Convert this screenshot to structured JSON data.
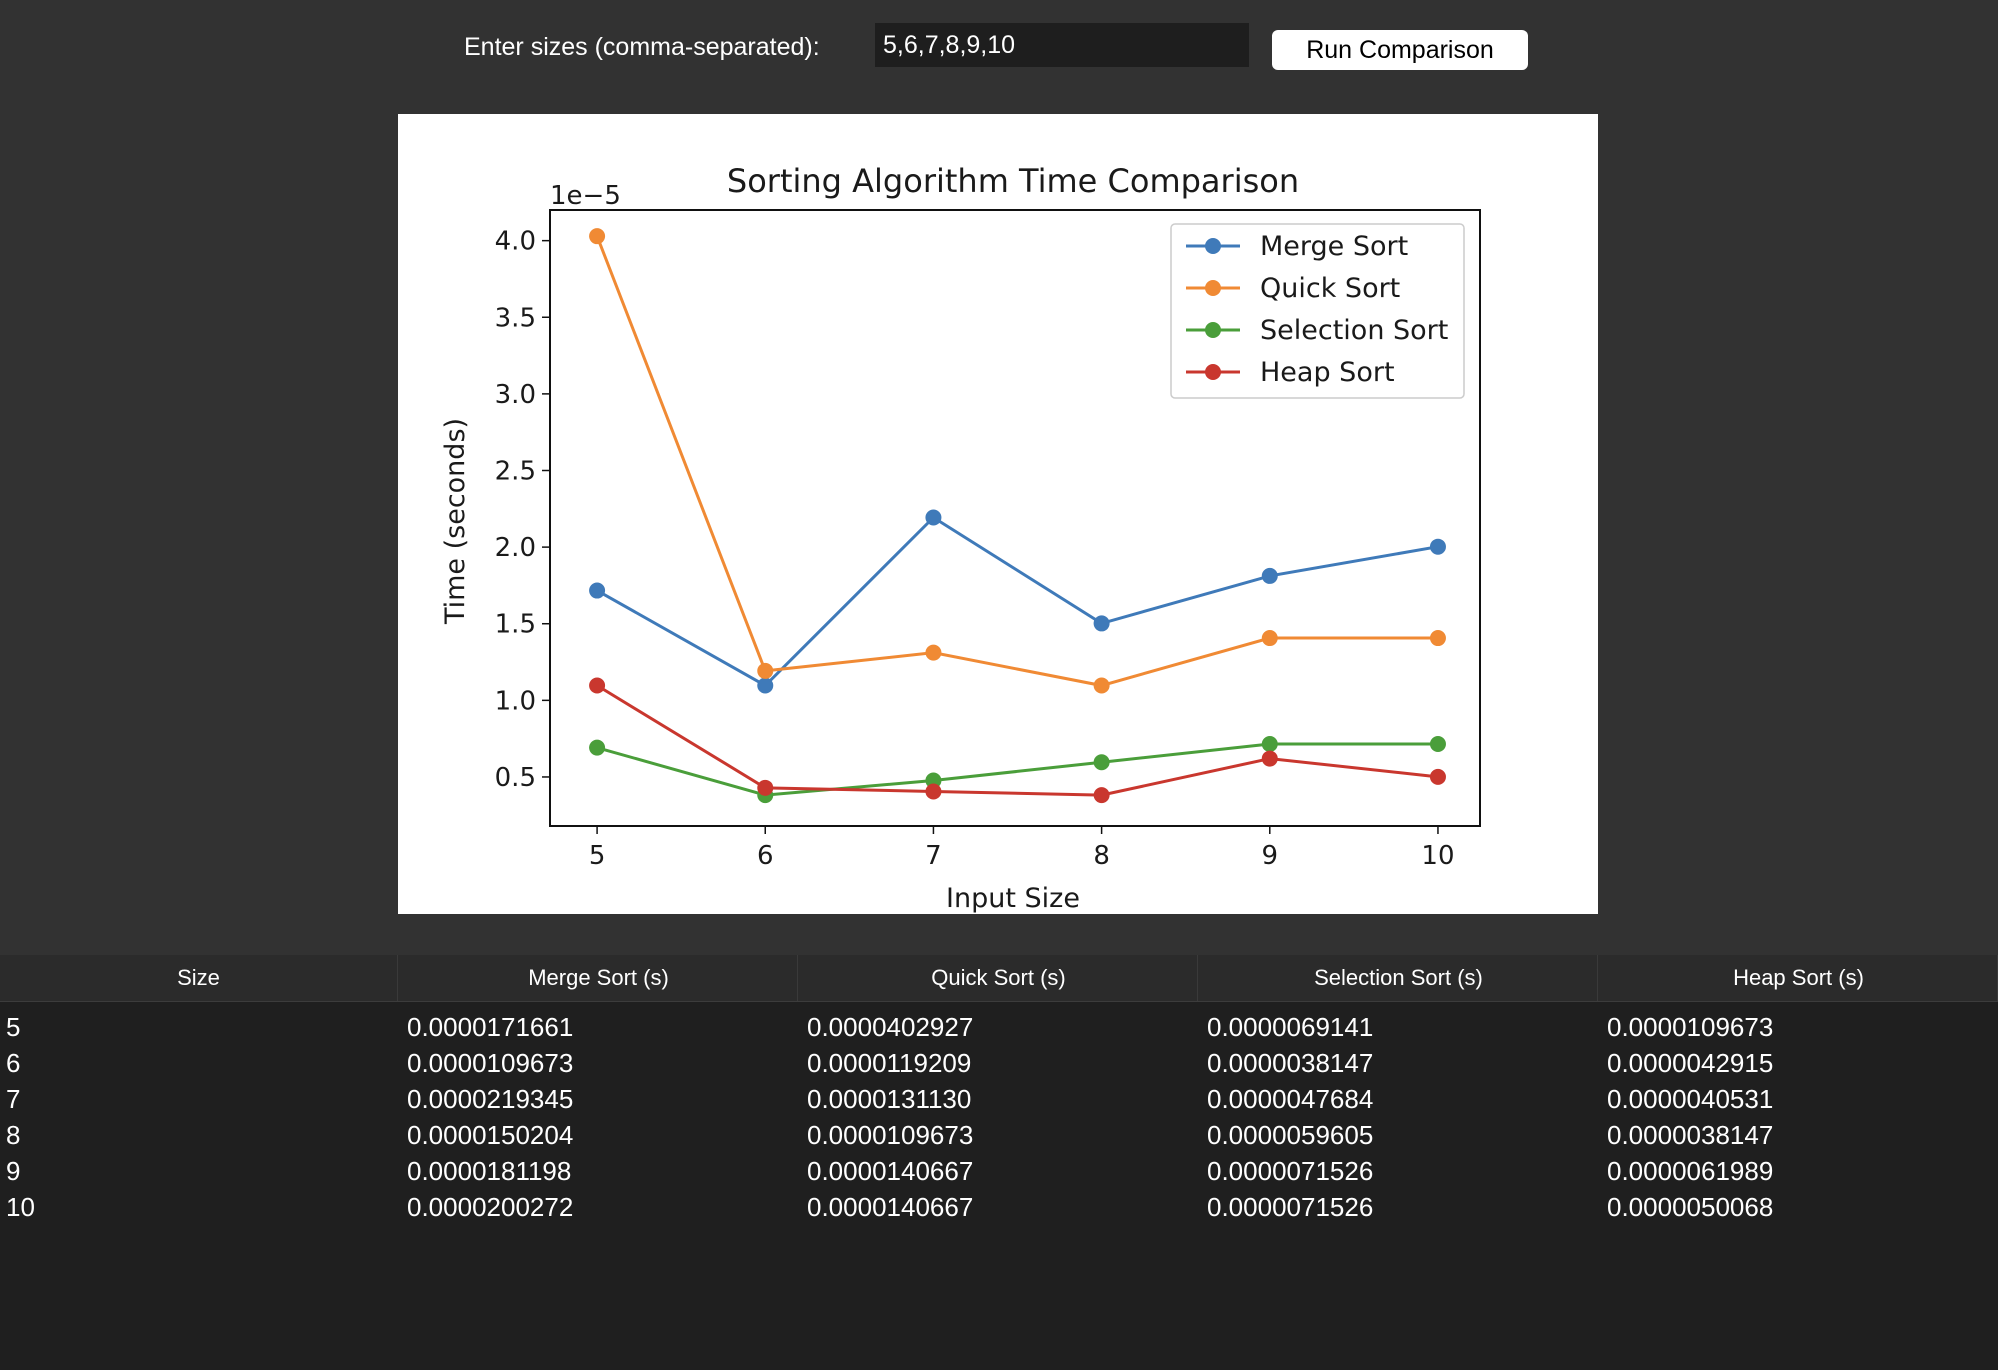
{
  "controls": {
    "size_label": "Enter sizes (comma-separated):",
    "size_value": "5,6,7,8,9,10",
    "run_button": "Run Comparison"
  },
  "chart_data": {
    "type": "line",
    "title": "Sorting Algorithm Time Comparison",
    "xlabel": "Input Size",
    "ylabel": "Time (seconds)",
    "offset_text": "1e−5",
    "scale": 1e-05,
    "x": [
      5,
      6,
      7,
      8,
      9,
      10
    ],
    "x_ticks": [
      "5",
      "6",
      "7",
      "8",
      "9",
      "10"
    ],
    "y_ticks": [
      0.5,
      1.0,
      1.5,
      2.0,
      2.5,
      3.0,
      3.5,
      4.0
    ],
    "y_tick_labels": [
      "0.5",
      "1.0",
      "1.5",
      "2.0",
      "2.5",
      "3.0",
      "3.5",
      "4.0"
    ],
    "ylim": [
      0.18,
      4.2
    ],
    "legend_position": "top-right",
    "grid": false,
    "series": [
      {
        "name": "Merge Sort",
        "color": "#3f7ab9",
        "values": [
          1.71661,
          1.09673,
          2.19345,
          1.50204,
          1.81198,
          2.00272
        ]
      },
      {
        "name": "Quick Sort",
        "color": "#f08a34",
        "values": [
          4.02927,
          1.19209,
          1.3113,
          1.09673,
          1.40667,
          1.40667
        ]
      },
      {
        "name": "Selection Sort",
        "color": "#4a9e3a",
        "values": [
          0.69141,
          0.38147,
          0.47684,
          0.59605,
          0.71526,
          0.71526
        ]
      },
      {
        "name": "Heap Sort",
        "color": "#c9372e",
        "values": [
          1.09673,
          0.42915,
          0.40531,
          0.38147,
          0.61989,
          0.50068
        ]
      }
    ]
  },
  "table": {
    "headers": [
      "Size",
      "Merge Sort (s)",
      "Quick Sort (s)",
      "Selection Sort (s)",
      "Heap Sort (s)"
    ],
    "rows": [
      [
        "5",
        "0.0000171661",
        "0.0000402927",
        "0.0000069141",
        "0.0000109673"
      ],
      [
        "6",
        "0.0000109673",
        "0.0000119209",
        "0.0000038147",
        "0.0000042915"
      ],
      [
        "7",
        "0.0000219345",
        "0.0000131130",
        "0.0000047684",
        "0.0000040531"
      ],
      [
        "8",
        "0.0000150204",
        "0.0000109673",
        "0.0000059605",
        "0.0000038147"
      ],
      [
        "9",
        "0.0000181198",
        "0.0000140667",
        "0.0000071526",
        "0.0000061989"
      ],
      [
        "10",
        "0.0000200272",
        "0.0000140667",
        "0.0000071526",
        "0.0000050068"
      ]
    ]
  }
}
